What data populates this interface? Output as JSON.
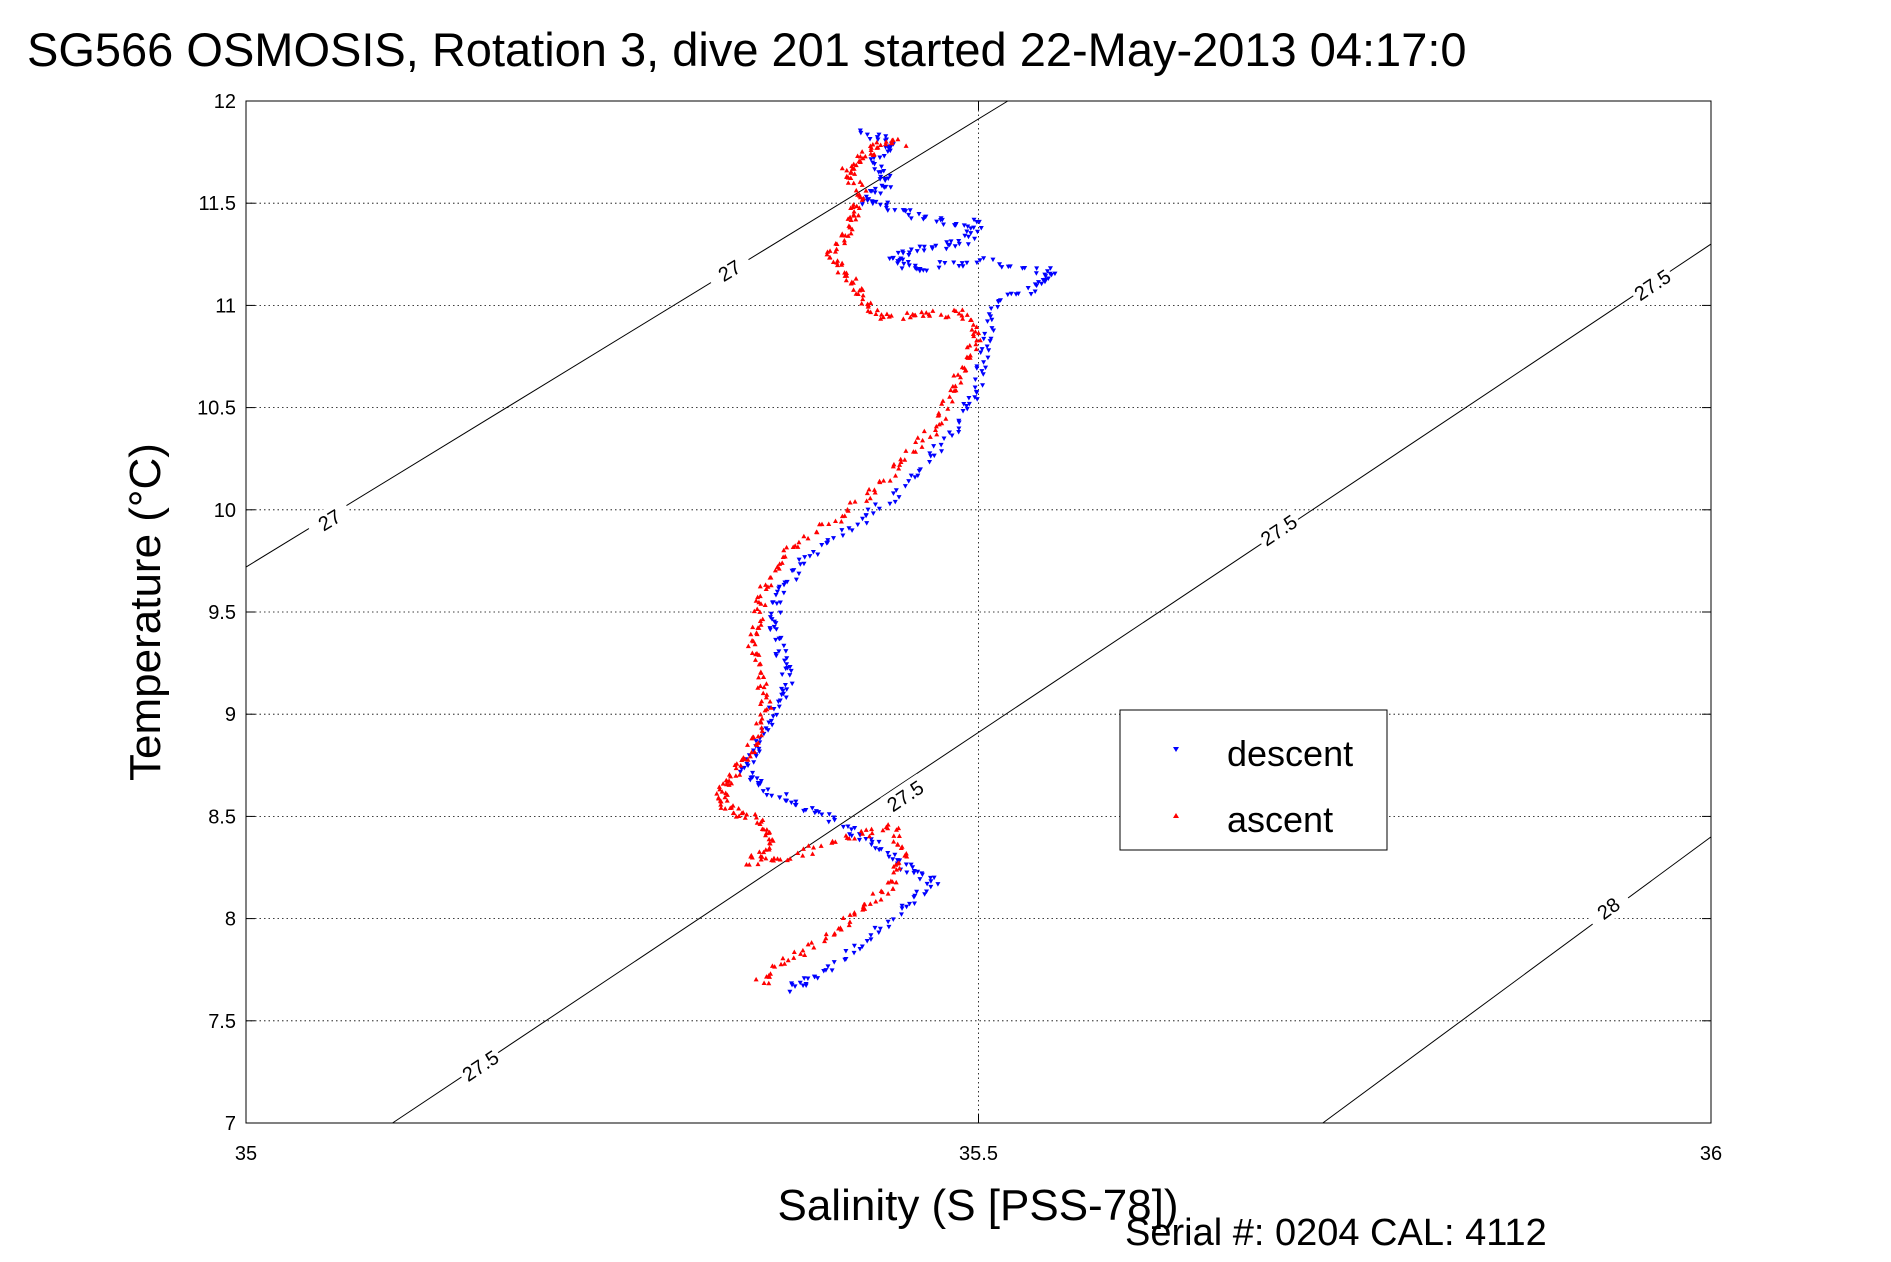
{
  "chart_data": {
    "type": "scatter",
    "title": "SG566 OSMOSIS, Rotation 3, dive 201 started 22-May-2013 04:17:0",
    "xlabel": "Salinity (S [PSS-78])",
    "ylabel": "Temperature (°C)",
    "xlim": [
      35,
      36
    ],
    "ylim": [
      7,
      12
    ],
    "x_ticks": [
      35,
      35.5,
      36
    ],
    "x_tick_labels": [
      "35",
      "35.5",
      "36"
    ],
    "y_ticks": [
      7,
      7.5,
      8,
      8.5,
      9,
      9.5,
      10,
      10.5,
      11,
      11.5,
      12
    ],
    "y_tick_labels": [
      "7",
      "7.5",
      "8",
      "8.5",
      "9",
      "9.5",
      "10",
      "10.5",
      "11",
      "11.5",
      "12"
    ],
    "grid": true,
    "legend_placement": "center-right",
    "footer": "Serial #: 0204  CAL: 4112",
    "density_contours": [
      {
        "label": "27",
        "points": [
          [
            35,
            9.72
          ],
          [
            35.52,
            12
          ]
        ],
        "label_positions": [
          [
            35.057,
            9.95
          ],
          [
            35.33,
            11.17
          ]
        ]
      },
      {
        "label": "27.5",
        "points": [
          [
            35.1,
            7
          ],
          [
            36,
            11.3
          ]
        ],
        "label_positions": [
          [
            35.16,
            7.28
          ],
          [
            35.45,
            8.6
          ],
          [
            35.705,
            9.9
          ],
          [
            35.96,
            11.1
          ]
        ]
      },
      {
        "label": "28",
        "points": [
          [
            35.735,
            7
          ],
          [
            36,
            8.4
          ]
        ],
        "label_positions": [
          [
            35.93,
            8.05
          ]
        ]
      }
    ],
    "series": [
      {
        "name": "descent",
        "color": "#0000ff",
        "marker": "triangle-down",
        "path": [
          [
            35.37,
            7.65
          ],
          [
            35.39,
            7.72
          ],
          [
            35.42,
            7.88
          ],
          [
            35.45,
            8.05
          ],
          [
            35.47,
            8.18
          ],
          [
            35.45,
            8.25
          ],
          [
            35.43,
            8.36
          ],
          [
            35.41,
            8.45
          ],
          [
            35.38,
            8.55
          ],
          [
            35.355,
            8.62
          ],
          [
            35.34,
            8.72
          ],
          [
            35.35,
            8.85
          ],
          [
            35.36,
            9.0
          ],
          [
            35.37,
            9.15
          ],
          [
            35.365,
            9.3
          ],
          [
            35.36,
            9.45
          ],
          [
            35.365,
            9.6
          ],
          [
            35.38,
            9.75
          ],
          [
            35.41,
            9.9
          ],
          [
            35.44,
            10.05
          ],
          [
            35.465,
            10.25
          ],
          [
            35.49,
            10.45
          ],
          [
            35.5,
            10.62
          ],
          [
            35.505,
            10.8
          ],
          [
            35.51,
            11.0
          ],
          [
            35.54,
            11.1
          ],
          [
            35.55,
            11.16
          ],
          [
            35.5,
            11.22
          ],
          [
            35.46,
            11.18
          ],
          [
            35.44,
            11.22
          ],
          [
            35.46,
            11.28
          ],
          [
            35.49,
            11.3
          ],
          [
            35.5,
            11.4
          ],
          [
            35.47,
            11.42
          ],
          [
            35.44,
            11.48
          ],
          [
            35.42,
            11.52
          ],
          [
            35.44,
            11.6
          ],
          [
            35.43,
            11.7
          ],
          [
            35.44,
            11.8
          ],
          [
            35.42,
            11.84
          ]
        ]
      },
      {
        "name": "ascent",
        "color": "#ff0000",
        "marker": "triangle-up",
        "path": [
          [
            35.35,
            7.68
          ],
          [
            35.37,
            7.8
          ],
          [
            35.4,
            7.92
          ],
          [
            35.42,
            8.05
          ],
          [
            35.44,
            8.15
          ],
          [
            35.45,
            8.3
          ],
          [
            35.44,
            8.45
          ],
          [
            35.41,
            8.4
          ],
          [
            35.37,
            8.3
          ],
          [
            35.345,
            8.28
          ],
          [
            35.36,
            8.38
          ],
          [
            35.35,
            8.48
          ],
          [
            35.33,
            8.53
          ],
          [
            35.325,
            8.6
          ],
          [
            35.33,
            8.68
          ],
          [
            35.34,
            8.78
          ],
          [
            35.35,
            8.9
          ],
          [
            35.355,
            9.05
          ],
          [
            35.35,
            9.2
          ],
          [
            35.345,
            9.35
          ],
          [
            35.35,
            9.5
          ],
          [
            35.355,
            9.65
          ],
          [
            35.37,
            9.8
          ],
          [
            35.4,
            9.95
          ],
          [
            35.43,
            10.1
          ],
          [
            35.45,
            10.25
          ],
          [
            35.47,
            10.4
          ],
          [
            35.48,
            10.55
          ],
          [
            35.49,
            10.7
          ],
          [
            35.5,
            10.85
          ],
          [
            35.49,
            10.97
          ],
          [
            35.46,
            10.95
          ],
          [
            35.43,
            10.95
          ],
          [
            35.42,
            11.05
          ],
          [
            35.41,
            11.15
          ],
          [
            35.4,
            11.25
          ],
          [
            35.41,
            11.35
          ],
          [
            35.415,
            11.45
          ],
          [
            35.42,
            11.55
          ],
          [
            35.41,
            11.65
          ],
          [
            35.42,
            11.72
          ],
          [
            35.43,
            11.78
          ],
          [
            35.45,
            11.8
          ]
        ]
      }
    ]
  }
}
